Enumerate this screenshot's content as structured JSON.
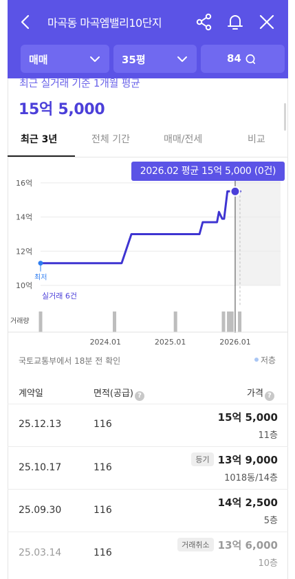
{
  "header": {
    "title": "마곡동 마곡엠밸리10단지",
    "filters": {
      "trade_type": "매매",
      "size": "35평",
      "area_search": "84"
    }
  },
  "summary": {
    "caption": "최근 실거래 기준 1개월 평균",
    "price": "15억 5,000"
  },
  "tabs": [
    {
      "label": "최근 3년",
      "active": true
    },
    {
      "label": "전체 기간",
      "active": false
    },
    {
      "label": "매매/전세",
      "active": false
    },
    {
      "label": "비교",
      "active": false
    }
  ],
  "tooltip": "2026.02 평균 15억 5,000 (0건)",
  "chart_data": {
    "type": "line",
    "y_tick_labels": [
      "16억",
      "14억",
      "12억",
      "10억"
    ],
    "y_ticks": [
      16,
      14,
      12,
      10
    ],
    "ylim": [
      10,
      16.6
    ],
    "x_tick_labels": [
      "2024.01",
      "2025.01",
      "2026.01"
    ],
    "x_ticks": [
      2024.0,
      2025.0,
      2026.0
    ],
    "xlim": [
      2023.0,
      2026.7
    ],
    "series": [
      {
        "x": [
          2023.0,
          2023.2,
          2023.4,
          2023.6,
          2023.8,
          2023.95,
          2024.08,
          2024.12,
          2024.14,
          2024.25,
          2024.4,
          2024.55,
          2024.7,
          2024.72,
          2024.78,
          2024.82,
          2025.0,
          2025.1,
          2025.3,
          2025.45,
          2025.5,
          2025.55,
          2025.6,
          2025.65,
          2025.72,
          2025.75,
          2025.8,
          2025.83,
          2025.88,
          2025.95,
          2026.0,
          2026.08
        ],
        "y": [
          11.3,
          11.3,
          11.3,
          11.3,
          11.3,
          11.3,
          11.3,
          11.3,
          11.3,
          11.3,
          13.0,
          13.0,
          13.0,
          13.0,
          13.0,
          13.0,
          13.0,
          13.0,
          13.0,
          13.0,
          13.7,
          13.7,
          13.7,
          13.7,
          13.7,
          14.3,
          13.9,
          13.9,
          15.5,
          15.5,
          15.5,
          15.5
        ]
      }
    ],
    "min_label": "최저",
    "min_point": {
      "x": 2023.0,
      "y": 11.3
    },
    "highlight_point": {
      "x": 2026.0,
      "y": 15.5
    },
    "recent_point": {
      "x": 2025.95,
      "y": 15.5
    },
    "trade_count_caption": "실거래 6건",
    "volume_label": "거래량",
    "volume_bars_x": [
      2023.0,
      2024.14,
      2025.08,
      2025.82,
      2025.9,
      2025.95,
      2026.07
    ],
    "colors": {
      "line": "#3e34d1",
      "min_point": "#2f7df0",
      "recent_point": "#ef5a2a",
      "highlight": "#4b3fd9",
      "grid": "#e9e9e9",
      "future_area": "#f2f2f2",
      "volume_bar": "#bdbdbd"
    }
  },
  "source": {
    "text": "국토교통부에서 18분 전 확인",
    "legend": "저층"
  },
  "table": {
    "headers": {
      "date": "계약일",
      "area": "면적(공급)",
      "price": "가격"
    },
    "rows": [
      {
        "date": "25.12.13",
        "area": "116",
        "badge": "",
        "price": "15억 5,000",
        "floor": "11층",
        "faded": false
      },
      {
        "date": "25.10.17",
        "area": "116",
        "badge": "등기",
        "price": "13억 9,000",
        "floor": "1018동/14층",
        "faded": false
      },
      {
        "date": "25.09.30",
        "area": "116",
        "badge": "",
        "price": "14억 2,500",
        "floor": "5층",
        "faded": false
      },
      {
        "date": "25.03.14",
        "area": "116",
        "badge": "거래취소",
        "price": "13억 6,000",
        "floor": "10층",
        "faded": true
      }
    ]
  }
}
